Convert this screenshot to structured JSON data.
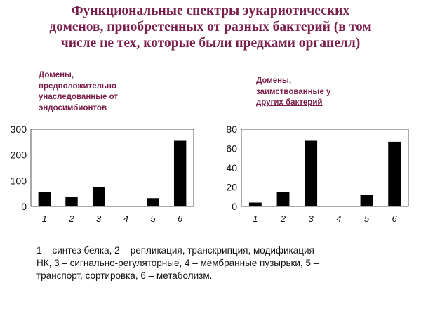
{
  "title": {
    "line1": "Функциональные спектры эукариотических",
    "line2": "доменов, приобретенных от разных бактерий (в том",
    "line3": "числе не тех, которые были предками органелл)"
  },
  "captions": {
    "left": [
      "Домены,",
      "предположительно",
      "унаследованные от",
      "эндосимбионтов"
    ],
    "right": [
      "Домены,",
      "заимствованные у",
      "других бактерий"
    ]
  },
  "chart_data": [
    {
      "type": "bar",
      "categories": [
        "1",
        "2",
        "3",
        "4",
        "5",
        "6"
      ],
      "values": [
        57,
        37,
        75,
        0,
        32,
        255
      ],
      "ylim": [
        0,
        300
      ],
      "yticks": [
        "0",
        "100",
        "200",
        "300"
      ],
      "grid": false,
      "bar_color": "#000000"
    },
    {
      "type": "bar",
      "categories": [
        "1",
        "2",
        "3",
        "4",
        "5",
        "6"
      ],
      "values": [
        4,
        15,
        68,
        0,
        12,
        67
      ],
      "ylim": [
        0,
        80
      ],
      "yticks": [
        "0",
        "20",
        "40",
        "60",
        "80"
      ],
      "grid": false,
      "bar_color": "#000000"
    }
  ],
  "legend": {
    "line1": "1 – синтез белка, 2 – репликация, транскрипция, модификация",
    "line2": "НК, 3 – сигнально-регуляторные, 4 – мембранные пузырьки, 5 –",
    "line3": "транспорт, сортировка, 6 – метаболизм."
  },
  "colors": {
    "title": "#7a1f4b",
    "bars": "#000000",
    "frame": "#555555"
  }
}
